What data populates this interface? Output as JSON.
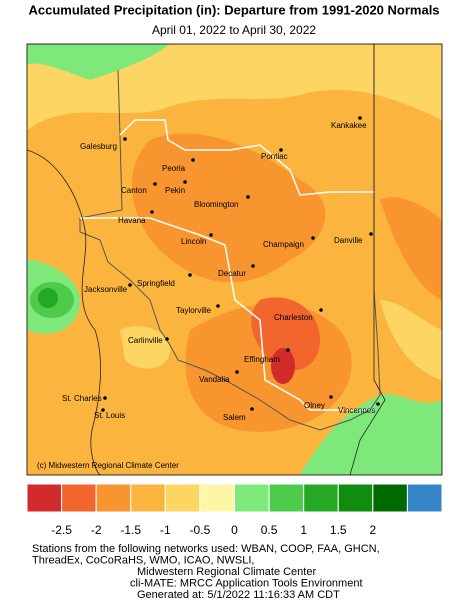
{
  "title": "Accumulated Precipitation (in): Departure from 1991-2020 Normals",
  "subtitle": "April 01, 2022 to April 30, 2022",
  "cities": [
    "Galesburg",
    "Peoria",
    "Canton",
    "Pekin",
    "Kankakee",
    "Pontiac",
    "Bloomington",
    "Havana",
    "Lincoln",
    "Champaign",
    "Danville",
    "Decatur",
    "Springfield",
    "Jacksonville",
    "Taylorville",
    "Charleston",
    "Carlinville",
    "Effingham",
    "Vandalia",
    "St. Charles",
    "St. Louis",
    "Olney",
    "Salem",
    "Vincennes"
  ],
  "credit": "(c) Midwestern Regional Climate Center",
  "legend": {
    "colors": [
      "#d22b2b",
      "#f2652d",
      "#f8952f",
      "#fbb53f",
      "#fdd562",
      "#fdf6a6",
      "#7ee87a",
      "#4fcb4c",
      "#25a925",
      "#108c10",
      "#006a00",
      "#3585c6"
    ],
    "ticks": [
      -2.5,
      -2,
      -1.5,
      -1,
      -0.5,
      0,
      0.5,
      1,
      1.5,
      2
    ]
  },
  "footer": [
    "Stations from the following networks used: WBAN, COOP, FAA, GHCN,",
    "ThreadEx, CoCoRaHS, WMO, ICAO, NWSLI,",
    "Midwestern Regional Climate Center",
    "cli-MATE: MRCC Application Tools Environment",
    "Generated at: 5/1/2022 11:16:33 AM CDT"
  ]
}
